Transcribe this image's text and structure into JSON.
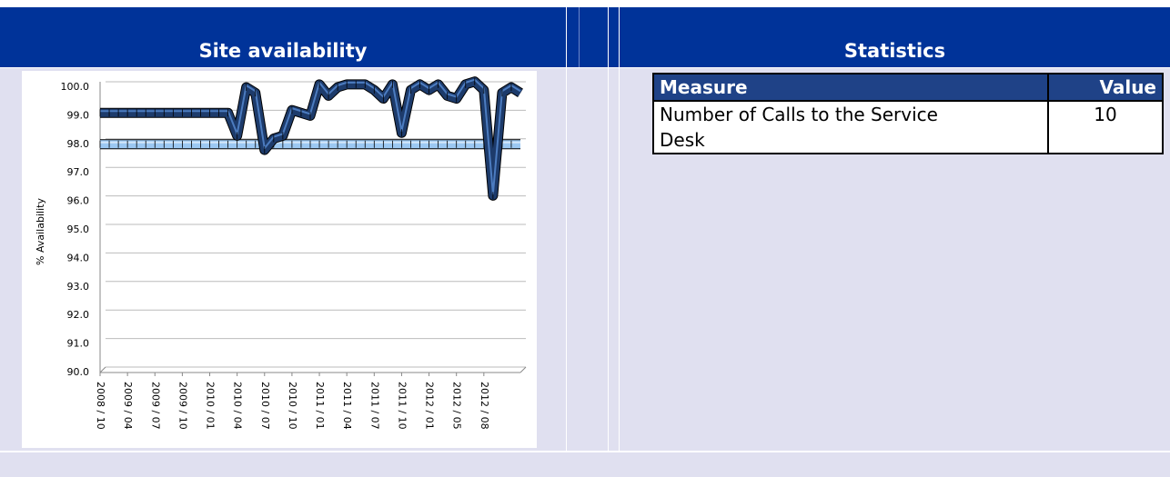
{
  "header": {
    "left_title": "Site availability",
    "right_title": "Statistics"
  },
  "chart_data": {
    "type": "line",
    "y_label": "% Availability",
    "categories": [
      "2008 / 10",
      null,
      null,
      "2009 / 04",
      null,
      null,
      "2009 / 07",
      null,
      null,
      "2009 / 10",
      null,
      null,
      "2010 / 01",
      null,
      null,
      "2010 / 04",
      null,
      null,
      "2010 / 07",
      null,
      null,
      "2010 / 10",
      null,
      null,
      "2011 / 01",
      null,
      null,
      "2011 / 04",
      null,
      null,
      "2011 / 07",
      null,
      null,
      "2011 / 10",
      null,
      null,
      "2012 / 01",
      null,
      null,
      "2012 / 05",
      null,
      null,
      "2012 / 08",
      null,
      null,
      null,
      null
    ],
    "series": [
      {
        "color": "#1d3b6b",
        "values": [
          99.1,
          99.1,
          99.1,
          99.1,
          99.1,
          99.1,
          99.1,
          99.1,
          99.1,
          99.1,
          99.1,
          99.1,
          99.1,
          99.1,
          99.1,
          98.3,
          100.0,
          99.8,
          97.8,
          98.2,
          98.3,
          99.2,
          99.1,
          99.0,
          100.1,
          99.7,
          100.0,
          100.1,
          100.1,
          100.1,
          99.9,
          99.6,
          100.1,
          98.4,
          99.9,
          100.1,
          99.9,
          100.1,
          99.7,
          99.6,
          100.1,
          100.2,
          99.9,
          96.2,
          99.8,
          100.0,
          99.8
        ]
      },
      {
        "color": "#9cc8f2",
        "values": [
          98.0,
          98.0,
          98.0,
          98.0,
          98.0,
          98.0,
          98.0,
          98.0,
          98.0,
          98.0,
          98.0,
          98.0,
          98.0,
          98.0,
          98.0,
          98.0,
          98.0,
          98.0,
          98.0,
          98.0,
          98.0,
          98.0,
          98.0,
          98.0,
          98.0,
          98.0,
          98.0,
          98.0,
          98.0,
          98.0,
          98.0,
          98.0,
          98.0,
          98.0,
          98.0,
          98.0,
          98.0,
          98.0,
          98.0,
          98.0,
          98.0,
          98.0,
          98.0,
          98.0,
          98.0,
          98.0,
          98.0
        ]
      }
    ],
    "ylim": [
      90,
      100
    ],
    "yticks": [
      {
        "value": 90,
        "label": "90.0"
      },
      {
        "value": 91,
        "label": "91.0"
      },
      {
        "value": 92,
        "label": "92.0"
      },
      {
        "value": 93,
        "label": "93.0"
      },
      {
        "value": 94,
        "label": "94.0"
      },
      {
        "value": 95,
        "label": "95.0"
      },
      {
        "value": 96,
        "label": "96.0"
      },
      {
        "value": 97,
        "label": "97.0"
      },
      {
        "value": 98,
        "label": "98.0"
      },
      {
        "value": 99,
        "label": "99.0"
      },
      {
        "value": 100,
        "label": "100.0"
      }
    ],
    "grid": true
  },
  "table": {
    "columns": [
      "Measure",
      "Value"
    ],
    "rows": [
      [
        "Number of Calls to the Service Desk",
        10
      ]
    ]
  }
}
